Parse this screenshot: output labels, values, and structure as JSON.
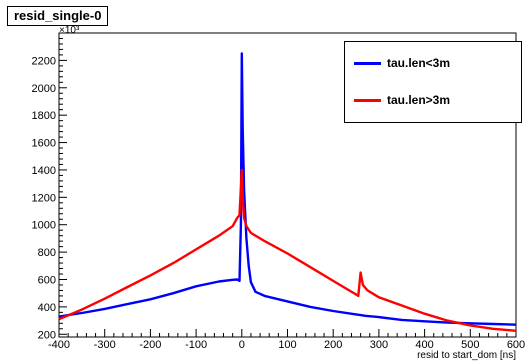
{
  "chart_data": {
    "type": "line",
    "title": "resid_single-0",
    "xlabel": "resid to start_dom [ns]",
    "ylabel": "",
    "y_multiplier": "×10³",
    "xlim": [
      -400,
      600
    ],
    "ylim": [
      180,
      2400
    ],
    "x_ticks": [
      -400,
      -300,
      -200,
      -100,
      0,
      100,
      200,
      300,
      400,
      500,
      600
    ],
    "y_ticks": [
      200,
      400,
      600,
      800,
      1000,
      1200,
      1400,
      1600,
      1800,
      2000,
      2200
    ],
    "legend_position": "top-right",
    "grid": false,
    "series": [
      {
        "name": "tau.len<3m",
        "color": "#0000ff",
        "points": [
          [
            -400,
            330
          ],
          [
            -350,
            355
          ],
          [
            -300,
            385
          ],
          [
            -250,
            420
          ],
          [
            -200,
            455
          ],
          [
            -150,
            500
          ],
          [
            -100,
            550
          ],
          [
            -50,
            585
          ],
          [
            -20,
            598
          ],
          [
            -10,
            600
          ],
          [
            -5,
            590
          ],
          [
            -2,
            1000
          ],
          [
            0,
            2250
          ],
          [
            2,
            1700
          ],
          [
            5,
            1250
          ],
          [
            10,
            900
          ],
          [
            15,
            700
          ],
          [
            20,
            580
          ],
          [
            30,
            510
          ],
          [
            50,
            480
          ],
          [
            100,
            440
          ],
          [
            150,
            400
          ],
          [
            200,
            370
          ],
          [
            250,
            345
          ],
          [
            260,
            340
          ],
          [
            270,
            335
          ],
          [
            300,
            325
          ],
          [
            350,
            305
          ],
          [
            400,
            295
          ],
          [
            450,
            285
          ],
          [
            500,
            280
          ],
          [
            550,
            275
          ],
          [
            600,
            270
          ]
        ]
      },
      {
        "name": "tau.len>3m",
        "color": "#ff0000",
        "points": [
          [
            -400,
            310
          ],
          [
            -350,
            380
          ],
          [
            -300,
            460
          ],
          [
            -250,
            545
          ],
          [
            -200,
            630
          ],
          [
            -150,
            720
          ],
          [
            -100,
            820
          ],
          [
            -50,
            920
          ],
          [
            -20,
            990
          ],
          [
            -10,
            1050
          ],
          [
            -5,
            1070
          ],
          [
            0,
            1400
          ],
          [
            2,
            1200
          ],
          [
            5,
            1050
          ],
          [
            10,
            990
          ],
          [
            20,
            940
          ],
          [
            50,
            880
          ],
          [
            100,
            790
          ],
          [
            150,
            690
          ],
          [
            200,
            590
          ],
          [
            250,
            490
          ],
          [
            255,
            480
          ],
          [
            260,
            650
          ],
          [
            265,
            560
          ],
          [
            275,
            520
          ],
          [
            300,
            470
          ],
          [
            350,
            410
          ],
          [
            400,
            350
          ],
          [
            450,
            300
          ],
          [
            500,
            265
          ],
          [
            550,
            240
          ],
          [
            600,
            225
          ]
        ]
      }
    ]
  }
}
